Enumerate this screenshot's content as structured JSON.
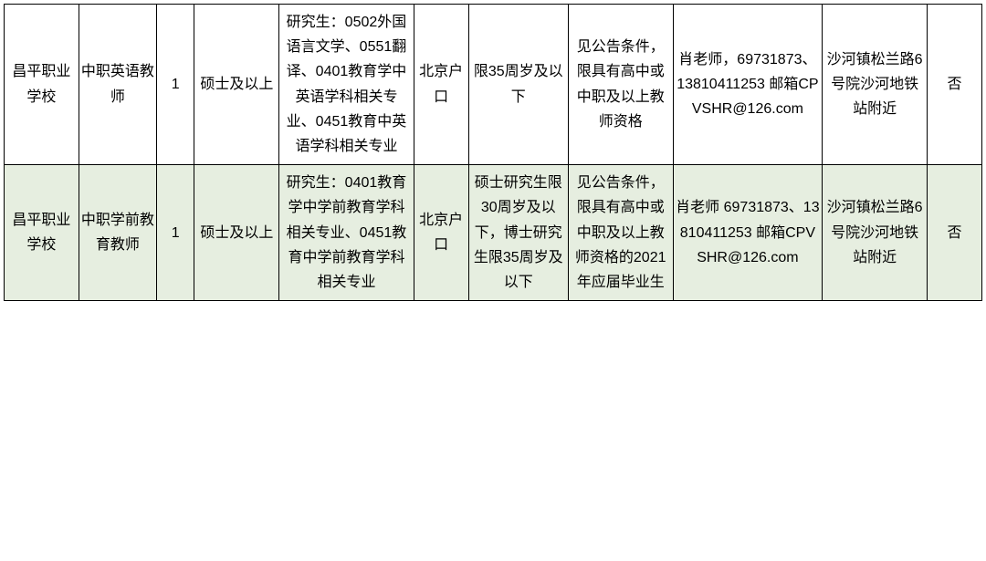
{
  "table": {
    "background_color": "#ffffff",
    "alt_row_color": "#e6eee0",
    "border_color": "#000000",
    "text_color": "#000000",
    "font_size": 16,
    "columns": [
      {
        "key": "school",
        "width_pct": 7.5
      },
      {
        "key": "post",
        "width_pct": 7.8
      },
      {
        "key": "count",
        "width_pct": 3.8
      },
      {
        "key": "degree",
        "width_pct": 8.5
      },
      {
        "key": "major",
        "width_pct": 13.5
      },
      {
        "key": "hukou",
        "width_pct": 5.5
      },
      {
        "key": "age",
        "width_pct": 10.0
      },
      {
        "key": "other",
        "width_pct": 10.5
      },
      {
        "key": "contact",
        "width_pct": 15.0
      },
      {
        "key": "address",
        "width_pct": 10.5
      },
      {
        "key": "flag",
        "width_pct": 5.5
      }
    ],
    "rows": [
      {
        "school": "昌平职业学校",
        "post": "中职英语教师",
        "count": "1",
        "degree": "硕士及以上",
        "major": "研究生：0502外国语言文学、0551翻译、0401教育学中英语学科相关专业、0451教育中英语学科相关专业",
        "hukou": "北京户口",
        "age": "限35周岁及以下",
        "other": "见公告条件，限具有高中或中职及以上教师资格",
        "contact": "肖老师，69731873、13810411253 邮箱CPVSHR@126.com",
        "address": "沙河镇松兰路6号院沙河地铁站附近",
        "flag": "否"
      },
      {
        "school": "昌平职业学校",
        "post": "中职学前教育教师",
        "count": "1",
        "degree": "硕士及以上",
        "major": "研究生：0401教育学中学前教育学科相关专业、0451教育中学前教育学科相关专业",
        "hukou": "北京户口",
        "age": "硕士研究生限30周岁及以下，博士研究生限35周岁及以下",
        "other": "见公告条件，限具有高中或中职及以上教师资格的2021年应届毕业生",
        "contact": "肖老师 69731873、13810411253 邮箱CPVSHR@126.com",
        "address": "沙河镇松兰路6号院沙河地铁站附近",
        "flag": "否"
      }
    ]
  }
}
